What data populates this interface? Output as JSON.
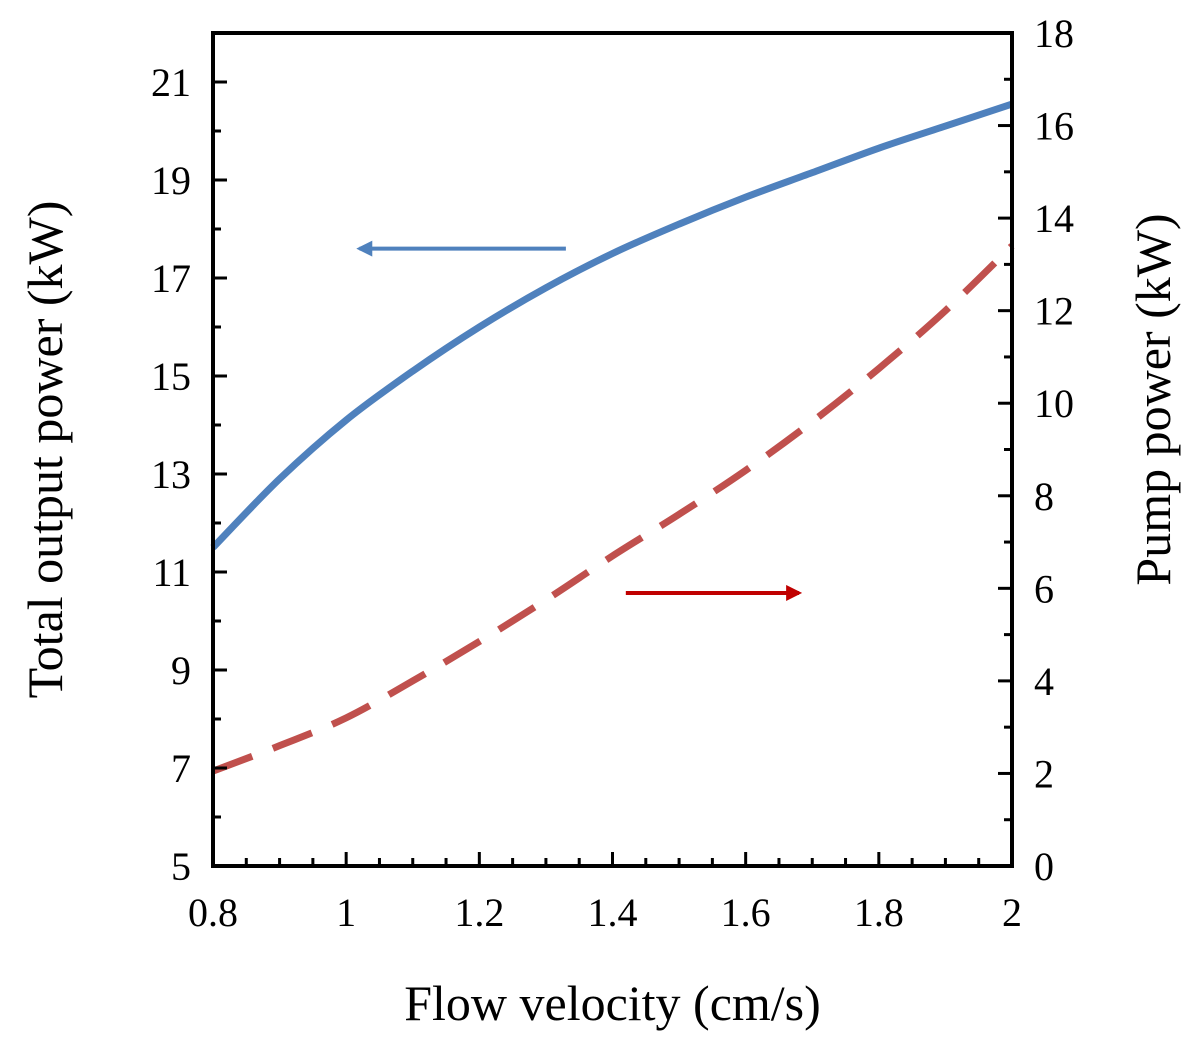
{
  "chart_data": {
    "type": "line",
    "xlabel": "Flow velocity (cm/s)",
    "ylabel": "Total output power (kW)",
    "y2label": "Pump power (kW)",
    "xlim": [
      0.8,
      2
    ],
    "ylim": [
      5,
      22
    ],
    "y2lim": [
      0,
      18
    ],
    "xticks": [
      "0.8",
      "1",
      "1.2",
      "1.4",
      "1.6",
      "1.8",
      "2"
    ],
    "yticks": [
      "5",
      "7",
      "9",
      "11",
      "13",
      "15",
      "17",
      "19",
      "21"
    ],
    "y2ticks": [
      "0",
      "2",
      "4",
      "6",
      "8",
      "10",
      "12",
      "14",
      "16",
      "18"
    ],
    "grid": false,
    "series": [
      {
        "axis": "left",
        "style": "solid",
        "color": "#4f81bd",
        "x": [
          0.8,
          0.9,
          1.0,
          1.1,
          1.2,
          1.3,
          1.4,
          1.5,
          1.6,
          1.7,
          1.8,
          1.9,
          2.0
        ],
        "values": [
          11.5,
          12.9,
          14.1,
          15.1,
          16.0,
          16.8,
          17.5,
          18.1,
          18.65,
          19.15,
          19.65,
          20.1,
          20.55
        ]
      },
      {
        "axis": "right",
        "style": "dashed",
        "color": "#c0504d",
        "x": [
          0.8,
          0.9,
          1.0,
          1.1,
          1.2,
          1.3,
          1.4,
          1.5,
          1.6,
          1.7,
          1.8,
          1.9,
          2.0
        ],
        "values": [
          2.05,
          2.6,
          3.2,
          4.0,
          4.85,
          5.75,
          6.7,
          7.6,
          8.55,
          9.6,
          10.75,
          12.0,
          13.4
        ]
      }
    ],
    "annotations": [
      {
        "type": "arrow",
        "direction": "left",
        "points_to": "left-axis",
        "color": "#4f81bd",
        "x_from": 1.33,
        "x_to": 1.02,
        "y": 17.6,
        "axis": "left"
      },
      {
        "type": "arrow",
        "direction": "right",
        "points_to": "right-axis",
        "color": "#c00000",
        "x_from": 1.42,
        "x_to": 1.68,
        "y": 5.9,
        "axis": "right"
      }
    ]
  }
}
